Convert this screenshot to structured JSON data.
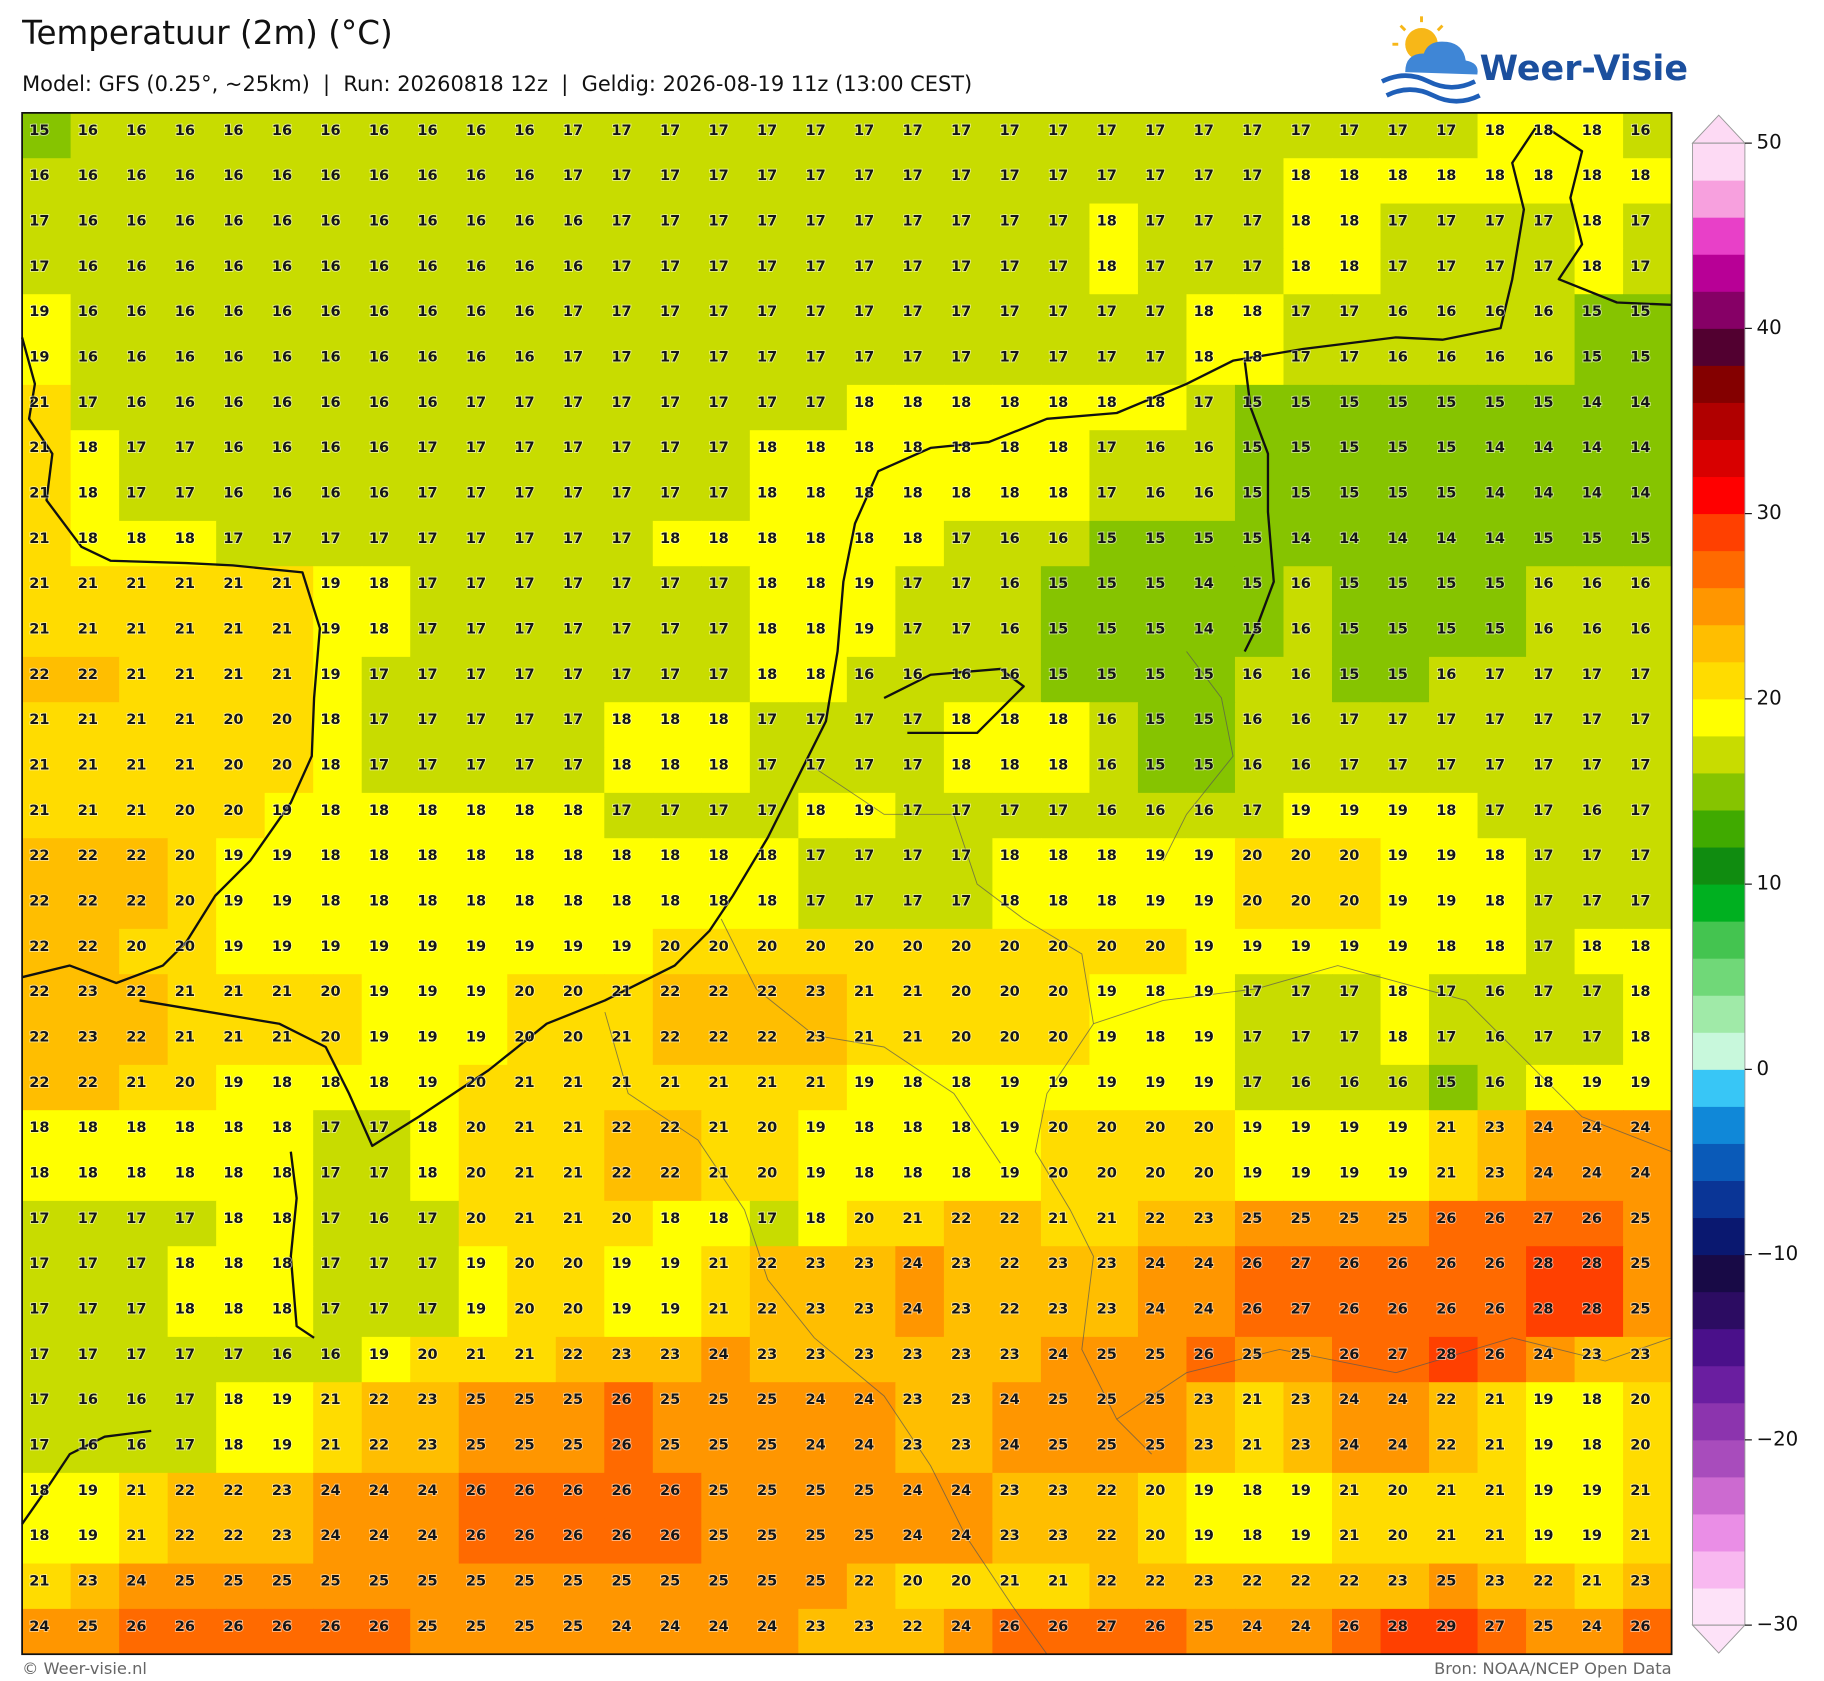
{
  "header": {
    "title": "Temperatuur (2m) (°C)",
    "subtitle": "Model: GFS (0.25°, ~25km)  |  Run: 20260818 12z  |  Geldig: 2026-08-19 11z (13:00 CEST)"
  },
  "logo": "Weer-Visie",
  "map": {
    "rows": [
      [
        15,
        16,
        16,
        16,
        16,
        16,
        16,
        16,
        16,
        16,
        16,
        17,
        17,
        17,
        17,
        17,
        17,
        17,
        17,
        17,
        17,
        17,
        17,
        17,
        17,
        17,
        17,
        17,
        17,
        17,
        18,
        18,
        18,
        16
      ],
      [
        16,
        16,
        16,
        16,
        16,
        16,
        16,
        16,
        16,
        16,
        16,
        17,
        17,
        17,
        17,
        17,
        17,
        17,
        17,
        17,
        17,
        17,
        17,
        17,
        17,
        17,
        18,
        18,
        18,
        18,
        18,
        18,
        18,
        18
      ],
      [
        17,
        16,
        16,
        16,
        16,
        16,
        16,
        16,
        16,
        16,
        16,
        16,
        17,
        17,
        17,
        17,
        17,
        17,
        17,
        17,
        17,
        17,
        18,
        17,
        17,
        17,
        18,
        18,
        17,
        17,
        17,
        17,
        18,
        17
      ],
      [
        17,
        16,
        16,
        16,
        16,
        16,
        16,
        16,
        16,
        16,
        16,
        16,
        17,
        17,
        17,
        17,
        17,
        17,
        17,
        17,
        17,
        17,
        18,
        17,
        17,
        17,
        18,
        18,
        17,
        17,
        17,
        17,
        18,
        17
      ],
      [
        19,
        16,
        16,
        16,
        16,
        16,
        16,
        16,
        16,
        16,
        16,
        17,
        17,
        17,
        17,
        17,
        17,
        17,
        17,
        17,
        17,
        17,
        17,
        17,
        18,
        18,
        17,
        17,
        16,
        16,
        16,
        16,
        15,
        15
      ],
      [
        19,
        16,
        16,
        16,
        16,
        16,
        16,
        16,
        16,
        16,
        16,
        17,
        17,
        17,
        17,
        17,
        17,
        17,
        17,
        17,
        17,
        17,
        17,
        17,
        18,
        18,
        17,
        17,
        16,
        16,
        16,
        16,
        15,
        15
      ],
      [
        21,
        17,
        16,
        16,
        16,
        16,
        16,
        16,
        16,
        17,
        17,
        17,
        17,
        17,
        17,
        17,
        17,
        18,
        18,
        18,
        18,
        18,
        18,
        18,
        17,
        15,
        15,
        15,
        15,
        15,
        15,
        15,
        14,
        14
      ],
      [
        21,
        18,
        17,
        17,
        16,
        16,
        16,
        16,
        17,
        17,
        17,
        17,
        17,
        17,
        17,
        18,
        18,
        18,
        18,
        18,
        18,
        18,
        17,
        16,
        16,
        15,
        15,
        15,
        15,
        15,
        14,
        14,
        14,
        14
      ],
      [
        21,
        18,
        17,
        17,
        16,
        16,
        16,
        16,
        17,
        17,
        17,
        17,
        17,
        17,
        17,
        18,
        18,
        18,
        18,
        18,
        18,
        18,
        17,
        16,
        16,
        15,
        15,
        15,
        15,
        15,
        14,
        14,
        14,
        14
      ],
      [
        21,
        18,
        18,
        18,
        17,
        17,
        17,
        17,
        17,
        17,
        17,
        17,
        17,
        18,
        18,
        18,
        18,
        18,
        18,
        17,
        16,
        16,
        15,
        15,
        15,
        15,
        14,
        14,
        14,
        14,
        14,
        15,
        15,
        15
      ],
      [
        21,
        21,
        21,
        21,
        21,
        21,
        19,
        18,
        17,
        17,
        17,
        17,
        17,
        17,
        17,
        18,
        18,
        19,
        17,
        17,
        16,
        15,
        15,
        15,
        14,
        15,
        16,
        15,
        15,
        15,
        15,
        16,
        16,
        16
      ],
      [
        21,
        21,
        21,
        21,
        21,
        21,
        19,
        18,
        17,
        17,
        17,
        17,
        17,
        17,
        17,
        18,
        18,
        19,
        17,
        17,
        16,
        15,
        15,
        15,
        14,
        15,
        16,
        15,
        15,
        15,
        15,
        16,
        16,
        16
      ],
      [
        22,
        22,
        21,
        21,
        21,
        21,
        19,
        17,
        17,
        17,
        17,
        17,
        17,
        17,
        17,
        18,
        18,
        16,
        16,
        16,
        16,
        15,
        15,
        15,
        15,
        16,
        16,
        15,
        15,
        16,
        17,
        17,
        17,
        17
      ],
      [
        21,
        21,
        21,
        21,
        20,
        20,
        18,
        17,
        17,
        17,
        17,
        17,
        18,
        18,
        18,
        17,
        17,
        17,
        17,
        18,
        18,
        18,
        16,
        15,
        15,
        16,
        16,
        17,
        17,
        17,
        17,
        17,
        17,
        17
      ],
      [
        21,
        21,
        21,
        21,
        20,
        20,
        18,
        17,
        17,
        17,
        17,
        17,
        18,
        18,
        18,
        17,
        17,
        17,
        17,
        18,
        18,
        18,
        16,
        15,
        15,
        16,
        16,
        17,
        17,
        17,
        17,
        17,
        17,
        17
      ],
      [
        21,
        21,
        21,
        20,
        20,
        19,
        18,
        18,
        18,
        18,
        18,
        18,
        17,
        17,
        17,
        17,
        18,
        19,
        17,
        17,
        17,
        17,
        16,
        16,
        16,
        17,
        19,
        19,
        19,
        18,
        17,
        17,
        16,
        17
      ],
      [
        22,
        22,
        22,
        20,
        19,
        19,
        18,
        18,
        18,
        18,
        18,
        18,
        18,
        18,
        18,
        18,
        17,
        17,
        17,
        17,
        18,
        18,
        18,
        19,
        19,
        20,
        20,
        20,
        19,
        19,
        18,
        17,
        17,
        17
      ],
      [
        22,
        22,
        22,
        20,
        19,
        19,
        18,
        18,
        18,
        18,
        18,
        18,
        18,
        18,
        18,
        18,
        17,
        17,
        17,
        17,
        18,
        18,
        18,
        19,
        19,
        20,
        20,
        20,
        19,
        19,
        18,
        17,
        17,
        17
      ],
      [
        22,
        22,
        20,
        20,
        19,
        19,
        19,
        19,
        19,
        19,
        19,
        19,
        19,
        20,
        20,
        20,
        20,
        20,
        20,
        20,
        20,
        20,
        20,
        20,
        19,
        19,
        19,
        19,
        19,
        18,
        18,
        17,
        18,
        18
      ],
      [
        22,
        23,
        22,
        21,
        21,
        21,
        20,
        19,
        19,
        19,
        20,
        20,
        21,
        22,
        22,
        22,
        23,
        21,
        21,
        20,
        20,
        20,
        19,
        18,
        19,
        17,
        17,
        17,
        18,
        17,
        16,
        17,
        17,
        18
      ],
      [
        22,
        23,
        22,
        21,
        21,
        21,
        20,
        19,
        19,
        19,
        20,
        20,
        21,
        22,
        22,
        22,
        23,
        21,
        21,
        20,
        20,
        20,
        19,
        18,
        19,
        17,
        17,
        17,
        18,
        17,
        16,
        17,
        17,
        18
      ],
      [
        22,
        22,
        21,
        20,
        19,
        18,
        18,
        18,
        19,
        20,
        21,
        21,
        21,
        21,
        21,
        21,
        21,
        19,
        18,
        18,
        19,
        19,
        19,
        19,
        19,
        17,
        16,
        16,
        16,
        15,
        16,
        18,
        19,
        19
      ],
      [
        18,
        18,
        18,
        18,
        18,
        18,
        17,
        17,
        18,
        20,
        21,
        21,
        22,
        22,
        21,
        20,
        19,
        18,
        18,
        18,
        19,
        20,
        20,
        20,
        20,
        19,
        19,
        19,
        19,
        21,
        23,
        24,
        24,
        24
      ],
      [
        18,
        18,
        18,
        18,
        18,
        18,
        17,
        17,
        18,
        20,
        21,
        21,
        22,
        22,
        21,
        20,
        19,
        18,
        18,
        18,
        19,
        20,
        20,
        20,
        20,
        19,
        19,
        19,
        19,
        21,
        23,
        24,
        24,
        24
      ],
      [
        17,
        17,
        17,
        17,
        18,
        18,
        17,
        16,
        17,
        20,
        21,
        21,
        20,
        18,
        18,
        17,
        18,
        20,
        21,
        22,
        22,
        21,
        21,
        22,
        23,
        25,
        25,
        25,
        25,
        26,
        26,
        27,
        26,
        25
      ],
      [
        17,
        17,
        17,
        18,
        18,
        18,
        17,
        17,
        17,
        19,
        20,
        20,
        19,
        19,
        21,
        22,
        23,
        23,
        24,
        23,
        22,
        23,
        23,
        24,
        24,
        26,
        27,
        26,
        26,
        26,
        26,
        28,
        28,
        25
      ],
      [
        17,
        17,
        17,
        18,
        18,
        18,
        17,
        17,
        17,
        19,
        20,
        20,
        19,
        19,
        21,
        22,
        23,
        23,
        24,
        23,
        22,
        23,
        23,
        24,
        24,
        26,
        27,
        26,
        26,
        26,
        26,
        28,
        28,
        25
      ],
      [
        17,
        17,
        17,
        17,
        17,
        16,
        16,
        19,
        20,
        21,
        21,
        22,
        23,
        23,
        24,
        23,
        23,
        23,
        23,
        23,
        23,
        24,
        25,
        25,
        26,
        25,
        25,
        26,
        27,
        28,
        26,
        24,
        23,
        23
      ],
      [
        17,
        16,
        16,
        17,
        18,
        19,
        21,
        22,
        23,
        25,
        25,
        25,
        26,
        25,
        25,
        25,
        24,
        24,
        23,
        23,
        24,
        25,
        25,
        25,
        23,
        21,
        23,
        24,
        24,
        22,
        21,
        19,
        18,
        20
      ],
      [
        17,
        16,
        16,
        17,
        18,
        19,
        21,
        22,
        23,
        25,
        25,
        25,
        26,
        25,
        25,
        25,
        24,
        24,
        23,
        23,
        24,
        25,
        25,
        25,
        23,
        21,
        23,
        24,
        24,
        22,
        21,
        19,
        18,
        20
      ],
      [
        18,
        19,
        21,
        22,
        22,
        23,
        24,
        24,
        24,
        26,
        26,
        26,
        26,
        26,
        25,
        25,
        25,
        25,
        24,
        24,
        23,
        23,
        22,
        20,
        19,
        18,
        19,
        21,
        20,
        21,
        21,
        19,
        19,
        21
      ],
      [
        18,
        19,
        21,
        22,
        22,
        23,
        24,
        24,
        24,
        26,
        26,
        26,
        26,
        26,
        25,
        25,
        25,
        25,
        24,
        24,
        23,
        23,
        22,
        20,
        19,
        18,
        19,
        21,
        20,
        21,
        21,
        19,
        19,
        21
      ],
      [
        21,
        23,
        24,
        25,
        25,
        25,
        25,
        25,
        25,
        25,
        25,
        25,
        25,
        25,
        25,
        25,
        25,
        22,
        20,
        20,
        21,
        21,
        22,
        22,
        23,
        22,
        22,
        22,
        23,
        25,
        23,
        22,
        21,
        23
      ],
      [
        24,
        25,
        26,
        26,
        26,
        26,
        26,
        26,
        25,
        25,
        25,
        25,
        24,
        24,
        24,
        24,
        23,
        23,
        22,
        24,
        26,
        26,
        27,
        26,
        25,
        24,
        24,
        26,
        28,
        29,
        27,
        25,
        24,
        26
      ]
    ]
  },
  "colorbar": {
    "lim": [
      -30,
      50
    ],
    "ticks": [
      {
        "value": -30,
        "label": "−30"
      },
      {
        "value": -20,
        "label": "−20"
      },
      {
        "value": -10,
        "label": "−10"
      },
      0,
      10,
      20,
      30,
      40,
      50
    ],
    "colors": [
      "#fde2f8",
      "#f8b8f0",
      "#ea8ee6",
      "#cc6ad0",
      "#a84cbc",
      "#8c34ae",
      "#6a1ea0",
      "#4a108a",
      "#2c0c62",
      "#180a46",
      "#0a1870",
      "#0a3596",
      "#0a5ab8",
      "#1088d8",
      "#38c6f6",
      "#c8f8dc",
      "#a0eaa8",
      "#70d878",
      "#44c450",
      "#00b020",
      "#108c10",
      "#40aa00",
      "#86c400",
      "#c8dc00",
      "#ffff00",
      "#ffdc00",
      "#ffbe00",
      "#ff9600",
      "#ff6a00",
      "#ff4000",
      "#ff0000",
      "#d80000",
      "#b00000",
      "#840000",
      "#520030",
      "#860066",
      "#b80096",
      "#e840c8",
      "#f7a0de",
      "#fddaf4"
    ]
  },
  "footer": {
    "left": "© Weer-visie.nl",
    "right": "Bron: NOAA/NCEP Open Data"
  }
}
